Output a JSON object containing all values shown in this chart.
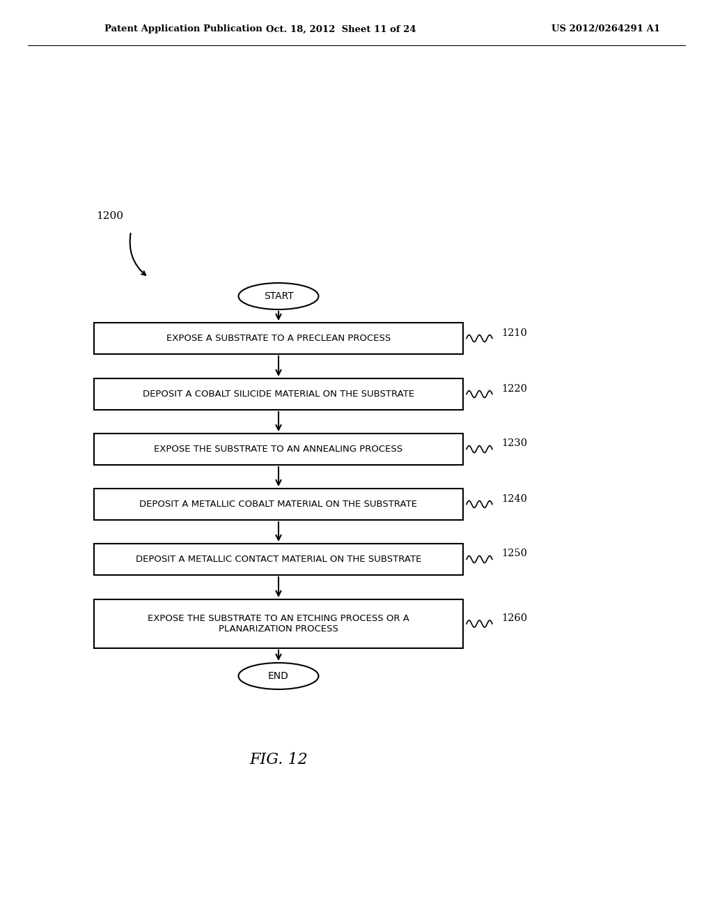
{
  "header_left": "Patent Application Publication",
  "header_mid": "Oct. 18, 2012  Sheet 11 of 24",
  "header_right": "US 2012/0264291 A1",
  "diagram_label": "1200",
  "figure_label": "FIG. 12",
  "start_label": "START",
  "end_label": "END",
  "steps": [
    {
      "label": "EXPOSE A SUBSTRATE TO A PRECLEAN PROCESS",
      "number": "1210",
      "multiline": false
    },
    {
      "label": "DEPOSIT A COBALT SILICIDE MATERIAL ON THE SUBSTRATE",
      "number": "1220",
      "multiline": false
    },
    {
      "label": "EXPOSE THE SUBSTRATE TO AN ANNEALING PROCESS",
      "number": "1230",
      "multiline": false
    },
    {
      "label": "DEPOSIT A METALLIC COBALT MATERIAL ON THE SUBSTRATE",
      "number": "1240",
      "multiline": false
    },
    {
      "label": "DEPOSIT A METALLIC CONTACT MATERIAL ON THE SUBSTRATE",
      "number": "1250",
      "multiline": false
    },
    {
      "label": "EXPOSE THE SUBSTRATE TO AN ETCHING PROCESS OR A\nPLANARIZATION PROCESS",
      "number": "1260",
      "multiline": true
    }
  ],
  "bg_color": "#ffffff",
  "box_edge_color": "#000000",
  "text_color": "#000000",
  "arrow_color": "#000000",
  "header_fontsize": 9.5,
  "step_fontsize": 9.5,
  "label_fontsize": 11,
  "fignum_fontsize": 16
}
